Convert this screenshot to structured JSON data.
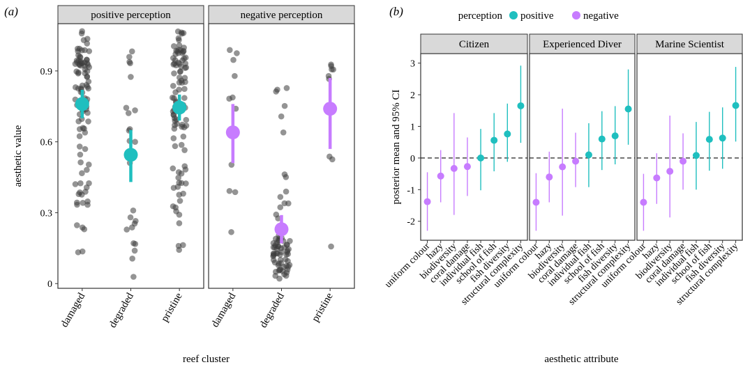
{
  "chart_data": [
    {
      "type": "scatter",
      "panel_label": "(a)",
      "xlabel": "reef cluster",
      "ylabel": "aesthetic value",
      "ylim": [
        -0.02,
        1.1
      ],
      "yticks": [
        "0",
        "0.3",
        "0.6",
        "0.9"
      ],
      "ytick_values": [
        0,
        0.3,
        0.6,
        0.9
      ],
      "grid": false,
      "categories": [
        "damaged",
        "degraded",
        "pristine"
      ],
      "facets": [
        {
          "strip": "positive perception",
          "color": "#1fbfbf",
          "summary": [
            {
              "category": "damaged",
              "mean": 0.76,
              "lo": 0.7,
              "hi": 0.82
            },
            {
              "category": "degraded",
              "mean": 0.545,
              "lo": 0.43,
              "hi": 0.65
            },
            {
              "category": "pristine",
              "mean": 0.745,
              "lo": 0.69,
              "hi": 0.8
            }
          ]
        },
        {
          "strip": "negative perception",
          "color": "#c77cff",
          "summary": [
            {
              "category": "damaged",
              "mean": 0.64,
              "lo": 0.51,
              "hi": 0.76
            },
            {
              "category": "degraded",
              "mean": 0.23,
              "lo": 0.17,
              "hi": 0.29
            },
            {
              "category": "pristine",
              "mean": 0.74,
              "lo": 0.57,
              "hi": 0.87
            }
          ]
        }
      ]
    },
    {
      "type": "scatter",
      "panel_label": "(b)",
      "xlabel": "aesthetic attribute",
      "ylabel": "posterior mean and 95% CI",
      "ylim": [
        -2.6,
        3.3
      ],
      "yticks": [
        "-2",
        "-1",
        "0",
        "1",
        "2",
        "3"
      ],
      "ytick_values": [
        -2,
        -1,
        0,
        1,
        2,
        3
      ],
      "reference_line": 0,
      "grid": false,
      "legend": {
        "title": "perception",
        "placement": "top",
        "items": [
          {
            "label": "positive",
            "color": "#1fbfbf"
          },
          {
            "label": "negative",
            "color": "#c77cff"
          }
        ]
      },
      "categories": [
        "uniform colour",
        "hazy",
        "biodiversity",
        "coral damage",
        "individual fish",
        "school of fish",
        "fish diversity",
        "structural complexity"
      ],
      "perception": [
        "negative",
        "negative",
        "negative",
        "negative",
        "positive",
        "positive",
        "positive",
        "positive"
      ],
      "facets": [
        {
          "strip": "Citizen",
          "mean": [
            -1.38,
            -0.57,
            -0.33,
            -0.27,
            0.0,
            0.56,
            0.76,
            1.65
          ],
          "lo": [
            -2.3,
            -1.4,
            -1.8,
            -1.2,
            -1.02,
            -0.42,
            -0.12,
            0.48
          ],
          "hi": [
            -0.45,
            0.25,
            1.42,
            0.65,
            0.92,
            1.42,
            1.72,
            2.92
          ]
        },
        {
          "strip": "Experienced Diver",
          "mean": [
            -1.4,
            -0.6,
            -0.28,
            -0.1,
            0.1,
            0.6,
            0.7,
            1.55
          ],
          "lo": [
            -2.3,
            -1.4,
            -1.82,
            -0.92,
            -0.92,
            -0.38,
            -0.2,
            0.42
          ],
          "hi": [
            -0.48,
            0.2,
            1.56,
            0.8,
            1.1,
            1.48,
            1.64,
            2.8
          ]
        },
        {
          "strip": "Marine Scientist",
          "mean": [
            -1.4,
            -0.63,
            -0.42,
            -0.1,
            0.08,
            0.59,
            0.63,
            1.66
          ],
          "lo": [
            -2.3,
            -1.45,
            -1.88,
            -1.0,
            -1.0,
            -0.4,
            -0.34,
            0.52
          ],
          "hi": [
            -0.5,
            0.15,
            1.34,
            0.78,
            1.14,
            1.46,
            1.6,
            2.88
          ]
        }
      ]
    }
  ]
}
